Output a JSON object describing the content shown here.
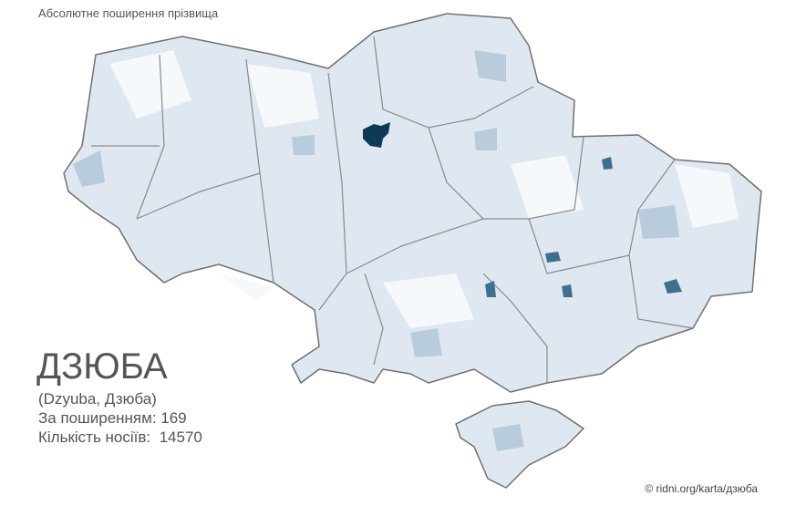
{
  "header": {
    "title": "Абсолютне поширення прізвища"
  },
  "surname": {
    "name": "ДЗЮБА",
    "variants": "(Dzyuba, Дзюба)",
    "rank": "За поширенням: 169",
    "count": "Кількість носіїв:  14570"
  },
  "footer": {
    "source": "© ridni.org/karta/дзюба"
  }
}
